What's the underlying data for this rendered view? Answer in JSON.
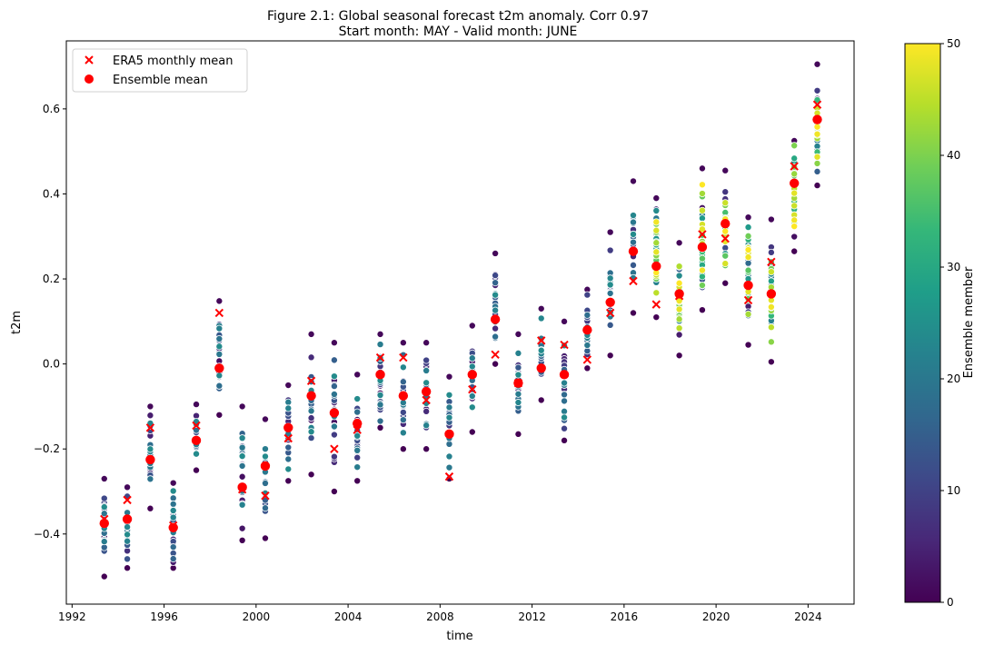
{
  "chart_data": {
    "type": "scatter",
    "title_line1": "Figure 2.1: Global seasonal forecast t2m anomaly. Corr 0.97",
    "title_line2": "Start month: MAY - Valid month: JUNE",
    "xlabel": "time",
    "ylabel": "t2m",
    "xlim": [
      1991.75,
      2026.0
    ],
    "ylim": [
      -0.565,
      0.76
    ],
    "xticks": [
      1992,
      1996,
      2000,
      2004,
      2008,
      2012,
      2016,
      2020,
      2024
    ],
    "yticks": [
      -0.4,
      -0.2,
      0.0,
      0.2,
      0.4,
      0.6
    ],
    "ytick_labels": [
      "−0.4",
      "−0.2",
      "0.0",
      "0.2",
      "0.4",
      "0.6"
    ],
    "grid": false,
    "legend": {
      "placement": "top-left",
      "entries": [
        "ERA5 monthly mean",
        "Ensemble mean"
      ]
    },
    "colorbar": {
      "label": "Ensemble member",
      "range": [
        0,
        50
      ],
      "ticks": [
        0,
        10,
        20,
        30,
        40,
        50
      ],
      "colormap": [
        "#440154",
        "#482878",
        "#3e4989",
        "#31688e",
        "#26828e",
        "#1f9e89",
        "#35b779",
        "#6ece58",
        "#b5de2b",
        "#fde725"
      ]
    },
    "colors": {
      "era5": "#ff0000",
      "ensemble_mean": "#ff0000"
    },
    "years": [
      1993,
      1994,
      1995,
      1996,
      1997,
      1998,
      1999,
      2000,
      2001,
      2002,
      2003,
      2004,
      2005,
      2006,
      2007,
      2008,
      2009,
      2010,
      2011,
      2012,
      2013,
      2014,
      2015,
      2016,
      2017,
      2018,
      2019,
      2020,
      2021,
      2022,
      2023,
      2024
    ],
    "era5_monthly_mean": [
      -0.365,
      -0.32,
      -0.15,
      -0.38,
      -0.145,
      0.12,
      -0.295,
      -0.31,
      -0.175,
      -0.04,
      -0.2,
      -0.155,
      0.015,
      0.015,
      -0.085,
      -0.265,
      -0.06,
      0.022,
      -0.045,
      0.055,
      0.045,
      0.01,
      0.12,
      0.195,
      0.14,
      0.16,
      0.305,
      0.295,
      0.15,
      0.24,
      0.465,
      0.61
    ],
    "ensemble_mean": [
      -0.375,
      -0.365,
      -0.225,
      -0.385,
      -0.18,
      -0.01,
      -0.29,
      -0.24,
      -0.15,
      -0.075,
      -0.115,
      -0.14,
      -0.025,
      -0.075,
      -0.065,
      -0.165,
      -0.025,
      0.105,
      -0.045,
      -0.01,
      -0.025,
      0.08,
      0.145,
      0.265,
      0.23,
      0.165,
      0.275,
      0.33,
      0.185,
      0.165,
      0.425,
      0.575
    ],
    "member_min": [
      -0.5,
      -0.48,
      -0.34,
      -0.48,
      -0.25,
      -0.12,
      -0.415,
      -0.41,
      -0.275,
      -0.26,
      -0.3,
      -0.275,
      -0.15,
      -0.2,
      -0.2,
      -0.27,
      -0.16,
      0.0,
      -0.165,
      -0.085,
      -0.18,
      -0.01,
      0.02,
      0.12,
      0.11,
      0.02,
      0.127,
      0.19,
      0.045,
      0.005,
      0.265,
      0.42
    ],
    "member_max": [
      -0.27,
      -0.29,
      -0.1,
      -0.28,
      -0.095,
      0.148,
      -0.1,
      -0.13,
      -0.05,
      0.07,
      0.05,
      -0.025,
      0.07,
      0.05,
      0.05,
      -0.03,
      0.09,
      0.26,
      0.07,
      0.13,
      0.1,
      0.175,
      0.31,
      0.43,
      0.39,
      0.285,
      0.46,
      0.455,
      0.345,
      0.34,
      0.525,
      0.705
    ],
    "member_count": [
      25,
      25,
      25,
      25,
      25,
      25,
      25,
      25,
      25,
      25,
      25,
      25,
      25,
      25,
      25,
      25,
      25,
      25,
      25,
      25,
      25,
      25,
      25,
      25,
      51,
      51,
      51,
      51,
      51,
      51,
      51,
      51
    ]
  }
}
